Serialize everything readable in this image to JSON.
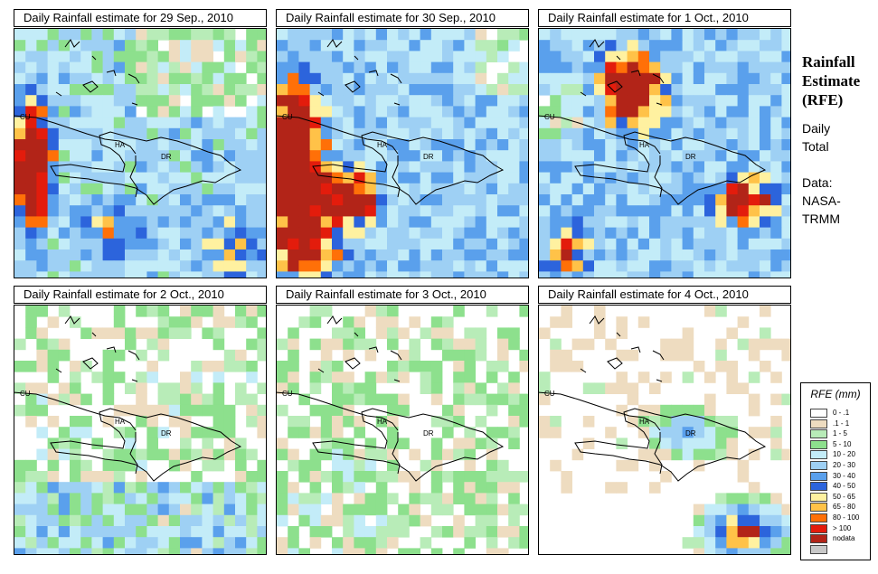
{
  "panels": [
    {
      "title": "Daily Rainfall estimate for  29 Sep., 2010",
      "seed": 11,
      "scene": "sep29"
    },
    {
      "title": "Daily Rainfall estimate for  30 Sep., 2010",
      "seed": 23,
      "scene": "sep30"
    },
    {
      "title": "Daily Rainfall estimate for  1 Oct., 2010",
      "seed": 37,
      "scene": "oct1"
    },
    {
      "title": "Daily Rainfall estimate for  2 Oct., 2010",
      "seed": 41,
      "scene": "oct2"
    },
    {
      "title": "Daily Rainfall estimate for  3 Oct., 2010",
      "seed": 53,
      "scene": "oct3"
    },
    {
      "title": "Daily Rainfall estimate for  4 Oct., 2010",
      "seed": 67,
      "scene": "oct4"
    }
  ],
  "map_labels": {
    "cuba": "CU",
    "haiti": "HA",
    "dominican_republic": "DR"
  },
  "side": {
    "title_lines": [
      "Rainfall",
      "Estimate",
      "(RFE)"
    ],
    "subtitle_lines": [
      "Daily",
      "Total"
    ],
    "source_lines": [
      "Data:",
      "NASA-",
      "TRMM"
    ]
  },
  "legend": {
    "title": "RFE (mm)",
    "items": [
      {
        "label": "0 - .1",
        "color": "#ffffff"
      },
      {
        "label": ".1 - 1",
        "color": "#eedcc0"
      },
      {
        "label": "1 - 5",
        "color": "#b8ecb8"
      },
      {
        "label": "5 - 10",
        "color": "#8de08d"
      },
      {
        "label": "10 - 20",
        "color": "#c3ecf8"
      },
      {
        "label": "20 - 30",
        "color": "#9ed0f4"
      },
      {
        "label": "30 - 40",
        "color": "#5aa0ec"
      },
      {
        "label": "40 - 50",
        "color": "#2c64dc"
      },
      {
        "label": "50 - 65",
        "color": "#fff1a0"
      },
      {
        "label": "65 - 80",
        "color": "#ffc248"
      },
      {
        "label": "80 - 100",
        "color": "#ff7008"
      },
      {
        "label": "> 100",
        "color": "#e31c0c"
      },
      {
        "label": "nodata",
        "color": "#b22418"
      },
      {
        "label": "",
        "color": "#c8c8c8"
      }
    ]
  }
}
